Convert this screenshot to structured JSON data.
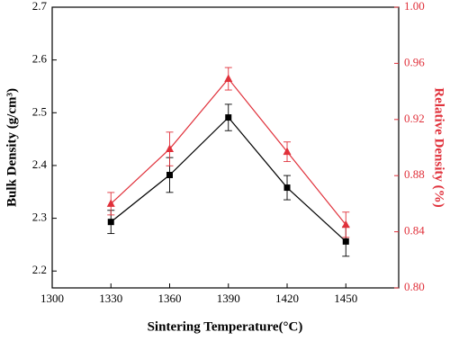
{
  "chart_data": {
    "type": "line",
    "x_label": "Sintering Temperature(°C)",
    "y_label": "Bulk Density (g/cm³)",
    "y2_label": "Relative Density (%)",
    "x": [
      1330,
      1360,
      1390,
      1420,
      1450
    ],
    "series": [
      {
        "color": "#000000",
        "marker": "square",
        "axis": "y",
        "values": [
          2.293,
          2.382,
          2.491,
          2.358,
          2.256
        ],
        "errors": [
          0.022,
          0.033,
          0.025,
          0.023,
          0.028
        ]
      },
      {
        "color": "#e0303a",
        "marker": "triangle",
        "axis": "y2",
        "values": [
          0.86,
          0.899,
          0.949,
          0.897,
          0.845
        ],
        "errors": [
          0.008,
          0.012,
          0.008,
          0.007,
          0.009
        ]
      }
    ],
    "xlim": [
      1300,
      1477
    ],
    "xticks": [
      1300,
      1330,
      1360,
      1390,
      1420,
      1450
    ],
    "ylim": [
      2.168,
      2.7
    ],
    "yticks": [
      2.2,
      2.3,
      2.4,
      2.5,
      2.6,
      2.7
    ],
    "y2lim": [
      0.8,
      1.0
    ],
    "y2ticks": [
      {
        "value": 0.8,
        "label": "0.80"
      },
      0.84,
      0.88,
      0.92,
      0.96,
      {
        "value": 1.0,
        "label": "1.00"
      }
    ]
  }
}
